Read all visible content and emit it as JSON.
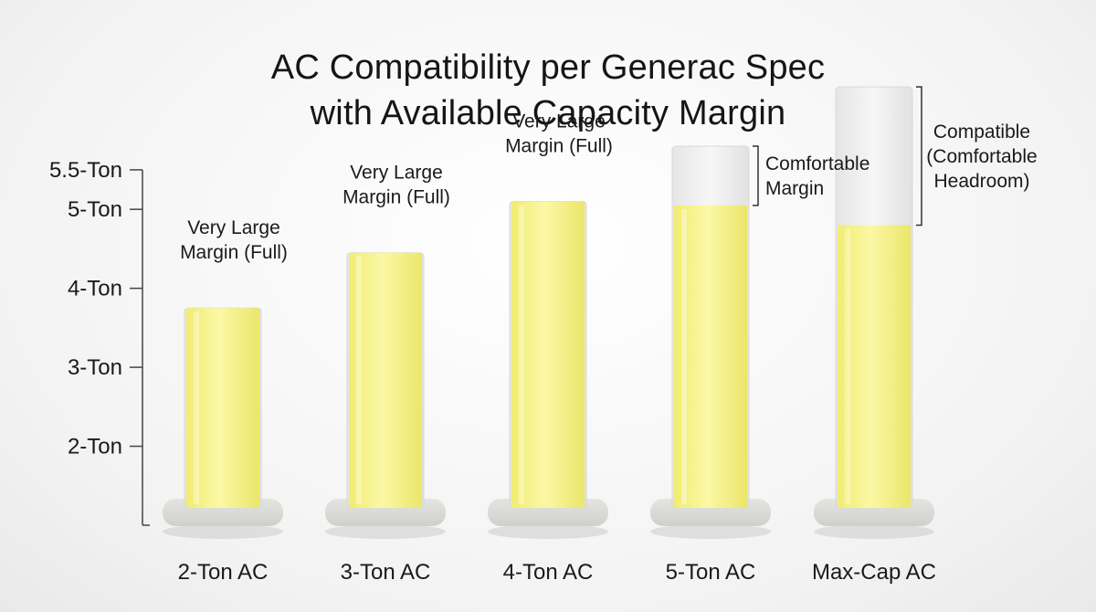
{
  "chart_data": {
    "type": "bar",
    "title_lines": [
      "AC Compatibility per Generac Spec",
      "with Available Capacity Margin"
    ],
    "categories": [
      "2-Ton AC",
      "3-Ton AC",
      "4-Ton AC",
      "5-Ton AC",
      "Max-Cap AC"
    ],
    "series": [
      {
        "values": [
          3.75,
          4.45,
          5.1,
          5.05,
          4.8
        ]
      }
    ],
    "capacity": [
      3.75,
      4.45,
      5.1,
      5.8,
      6.55
    ],
    "y_ticks": [
      {
        "value": 2,
        "label": "2-Ton"
      },
      {
        "value": 3,
        "label": "3-Ton"
      },
      {
        "value": 4,
        "label": "4-Ton"
      },
      {
        "value": 5,
        "label": "5-Ton"
      },
      {
        "value": 5.5,
        "label": "5.5-Ton"
      }
    ],
    "ylim": [
      1.0,
      5.8
    ],
    "annotations": [
      {
        "category": "2-Ton AC",
        "lines": [
          "Very Large",
          "Margin (Full)"
        ],
        "position": "above"
      },
      {
        "category": "3-Ton AC",
        "lines": [
          "Very Large",
          "Margin (Full)"
        ],
        "position": "above"
      },
      {
        "category": "4-Ton AC",
        "lines": [
          "Very Large",
          "Margin (Full)"
        ],
        "position": "above"
      },
      {
        "category": "5-Ton AC",
        "lines": [
          "Comfortable",
          "Margin"
        ],
        "position": "right-bracket"
      },
      {
        "category": "Max-Cap AC",
        "lines": [
          "Compatible",
          "(Comfortable",
          "Headroom)"
        ],
        "position": "right-bracket"
      }
    ],
    "colors": {
      "fill": "#f8f48c",
      "glass": "#eeeeee",
      "base": "#d9d9d6"
    },
    "grid": false,
    "legend": "none"
  }
}
